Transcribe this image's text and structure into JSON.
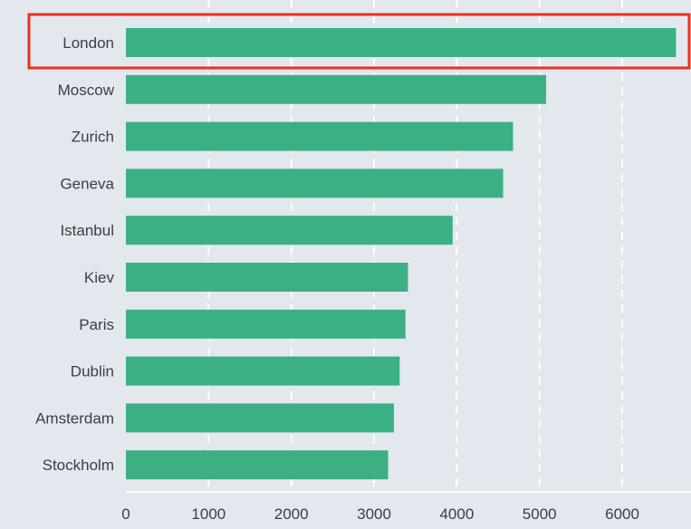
{
  "chart_data": {
    "type": "bar",
    "orientation": "horizontal",
    "categories": [
      "London",
      "Moscow",
      "Zurich",
      "Geneva",
      "Istanbul",
      "Kiev",
      "Paris",
      "Dublin",
      "Amsterdam",
      "Stockholm"
    ],
    "values": [
      6650,
      5080,
      4680,
      4560,
      3950,
      3410,
      3380,
      3310,
      3240,
      3170
    ],
    "title": "",
    "xlabel": "",
    "ylabel": "",
    "xlim": [
      0,
      6700
    ],
    "xticks": [
      "0",
      "1000",
      "2000",
      "3000",
      "4000",
      "5000",
      "6000"
    ],
    "grid": true,
    "highlighted_category": "London",
    "colors": {
      "bar": "#3bb183",
      "background": "#e3e7ee",
      "highlight": "#e8321e",
      "grid": "#ffffff"
    }
  }
}
